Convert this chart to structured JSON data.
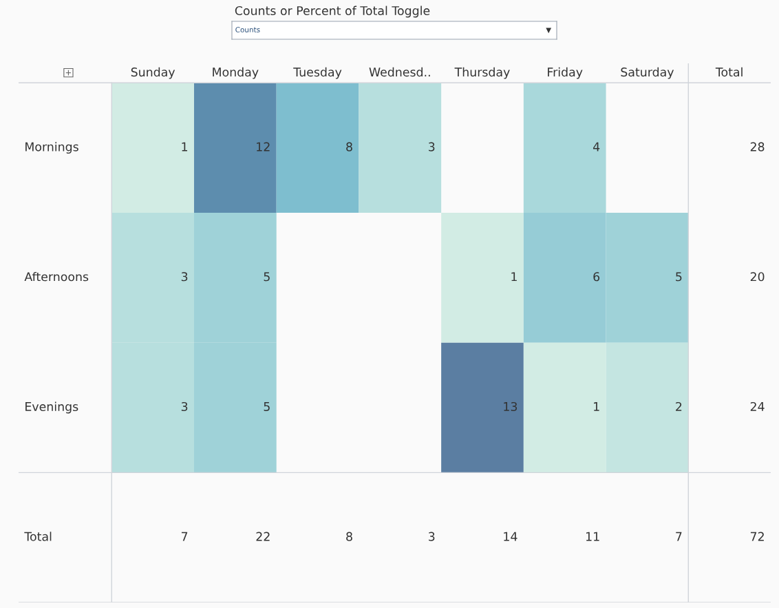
{
  "chart_data": {
    "type": "heatmap",
    "annotations": [
      "Counts or Percent of Total Toggle",
      "Counts",
      "Total",
      "Total"
    ],
    "categories": [
      "Sunday",
      "Monday",
      "Tuesday",
      "Wednesd..",
      "Thursday",
      "Friday",
      "Saturday"
    ],
    "y_categories": [
      "Mornings",
      "Afternoons",
      "Evenings"
    ],
    "cells": [
      [
        1,
        12,
        8,
        3,
        null,
        4,
        null
      ],
      [
        3,
        5,
        null,
        null,
        1,
        6,
        5
      ],
      [
        3,
        5,
        null,
        null,
        13,
        1,
        2
      ]
    ],
    "colors": [
      "#d2ece4",
      "#a9d8db",
      "#8cc6d3",
      "#62adc6",
      "#5b7ea2"
    ],
    "totals": [
      "28",
      "20",
      "24",
      "7",
      "22",
      "8",
      "3",
      "14",
      "11",
      "7",
      "72"
    ],
    "data_labels": true
  }
}
